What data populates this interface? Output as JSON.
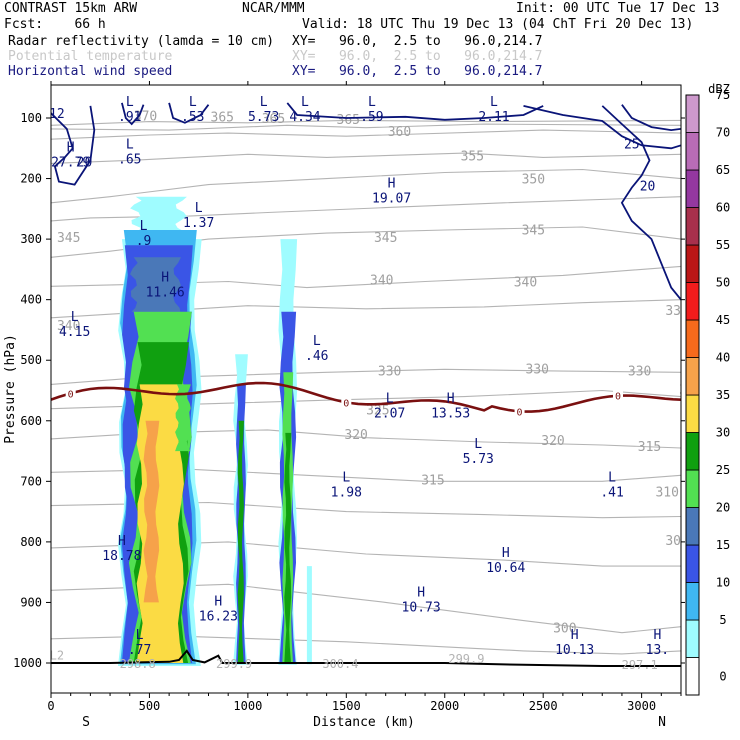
{
  "header": {
    "model": "CONTRAST 15km ARW",
    "center": "NCAR/MMM",
    "init": "Init: 00 UTC Tue 17 Dec 13",
    "fcst": "Fcst:    66 h",
    "valid": "Valid: 18 UTC Thu 19 Dec 13 (04 ChT Fri 20 Dec 13)",
    "field1": "Radar reflectivity (lamda = 10 cm)",
    "field1_xy": "XY=   96.0,  2.5 to   96.0,214.7",
    "field2": "Potential temperature",
    "field2_xy": "XY=   96.0,  2.5 to   96.0,214.7",
    "field3": "Horizontal wind speed",
    "field3_xy": "XY=   96.0,  2.5 to   96.0,214.7"
  },
  "colors": {
    "field1": "#000000",
    "field2": "#c8c8c8",
    "field3": "#1a1a80",
    "wind": "#0a1478",
    "theta": "#a0a0a0",
    "freezing": "#7a1010",
    "terrain": "#000000"
  },
  "chart_data": {
    "type": "heatmap",
    "subtype": "vertical cross-section",
    "xlabel": "Distance (km)",
    "ylabel": "Pressure (hPa)",
    "xlim": [
      0,
      3200
    ],
    "ylim": [
      1050,
      75
    ],
    "x_ticks": [
      "0",
      "500",
      "1000",
      "1500",
      "2000",
      "2500",
      "3000"
    ],
    "x_tick_values": [
      0,
      500,
      1000,
      1500,
      2000,
      2500,
      3000
    ],
    "y_ticks": [
      "100",
      "200",
      "300",
      "400",
      "500",
      "600",
      "700",
      "800",
      "900",
      "1000"
    ],
    "y_tick_values": [
      100,
      200,
      300,
      400,
      500,
      600,
      700,
      800,
      900,
      1000
    ],
    "x_end_labels": [
      "S",
      "N"
    ],
    "colorbar": {
      "unit": "dBZ",
      "levels": [
        "0",
        "5",
        "10",
        "15",
        "20",
        "25",
        "30",
        "35",
        "40",
        "45",
        "50",
        "55",
        "60",
        "65",
        "70",
        "75"
      ],
      "colors": [
        "#ffffff",
        "#9ffcff",
        "#3fb7f2",
        "#3a55e6",
        "#4a78b8",
        "#52e052",
        "#10a010",
        "#fbdb44",
        "#f6a24a",
        "#f66a1c",
        "#f21c1c",
        "#bb1616",
        "#a8304c",
        "#9438a0",
        "#b86cb6",
        "#cd99cc"
      ]
    },
    "reflectivity_columns": [
      {
        "x": [
          370,
          740
        ],
        "top": 230,
        "bottom": 1000,
        "max_dbz": 35
      },
      {
        "x": [
          935,
          985
        ],
        "top": 490,
        "bottom": 1000,
        "max_dbz": 30
      },
      {
        "x": [
          1160,
          1240
        ],
        "top": 300,
        "bottom": 1000,
        "max_dbz": 30
      },
      {
        "x": [
          1300,
          1320
        ],
        "top": 840,
        "bottom": 1000,
        "max_dbz": 5
      }
    ],
    "theta_labels": [
      "370",
      "365",
      "365",
      "365",
      "360",
      "355",
      "350",
      "345",
      "345",
      "345",
      "340",
      "340",
      "340",
      "335",
      "330",
      "330",
      "330",
      "325",
      "325",
      "320",
      "320",
      "315",
      "315",
      "310",
      "305",
      "300"
    ],
    "wind_labels": [
      "12",
      "20",
      "25",
      "20"
    ],
    "freezing_level_label": "0",
    "extrema": [
      {
        "type": "H",
        "value": "27.79",
        "x": 100,
        "p": 155
      },
      {
        "type": "L",
        "value": ".65",
        "x": 400,
        "p": 150
      },
      {
        "type": "L",
        "value": ".91",
        "x": 400,
        "p": 80
      },
      {
        "type": "L",
        "value": ".53",
        "x": 720,
        "p": 80
      },
      {
        "type": "L",
        "value": "5.73",
        "x": 1080,
        "p": 80
      },
      {
        "type": "L",
        "value": "4.34",
        "x": 1290,
        "p": 80
      },
      {
        "type": "L",
        "value": ".59",
        "x": 1630,
        "p": 80
      },
      {
        "type": "L",
        "value": "2.11",
        "x": 2250,
        "p": 80
      },
      {
        "type": "L",
        "value": "1.37",
        "x": 750,
        "p": 255
      },
      {
        "type": "L",
        "value": ".9",
        "x": 470,
        "p": 285
      },
      {
        "type": "H",
        "value": "11.46",
        "x": 580,
        "p": 370
      },
      {
        "type": "H",
        "value": "19.07",
        "x": 1730,
        "p": 215
      },
      {
        "type": "L",
        "value": "4.15",
        "x": 120,
        "p": 435
      },
      {
        "type": "L",
        "value": ".46",
        "x": 1350,
        "p": 475
      },
      {
        "type": "L",
        "value": "2.07",
        "x": 1720,
        "p": 570
      },
      {
        "type": "H",
        "value": "13.53",
        "x": 2030,
        "p": 570
      },
      {
        "type": "L",
        "value": "5.73",
        "x": 2170,
        "p": 645
      },
      {
        "type": "L",
        "value": "1.98",
        "x": 1500,
        "p": 700
      },
      {
        "type": "L",
        "value": ".41",
        "x": 2850,
        "p": 700
      },
      {
        "type": "H",
        "value": "18.78",
        "x": 360,
        "p": 805
      },
      {
        "type": "H",
        "value": "16.23",
        "x": 850,
        "p": 905
      },
      {
        "type": "H",
        "value": "10.64",
        "x": 2310,
        "p": 825
      },
      {
        "type": "H",
        "value": "10.73",
        "x": 1880,
        "p": 890
      },
      {
        "type": "L",
        "value": ".77",
        "x": 450,
        "p": 960
      },
      {
        "type": "H",
        "value": "10.13",
        "x": 2660,
        "p": 960
      },
      {
        "type": "H",
        "value": "13.",
        "x": 3080,
        "p": 960
      }
    ],
    "surface_theta_labels": [
      "L2",
      "298.8",
      "299.9",
      "300.4",
      "299.9",
      "297.1"
    ]
  }
}
